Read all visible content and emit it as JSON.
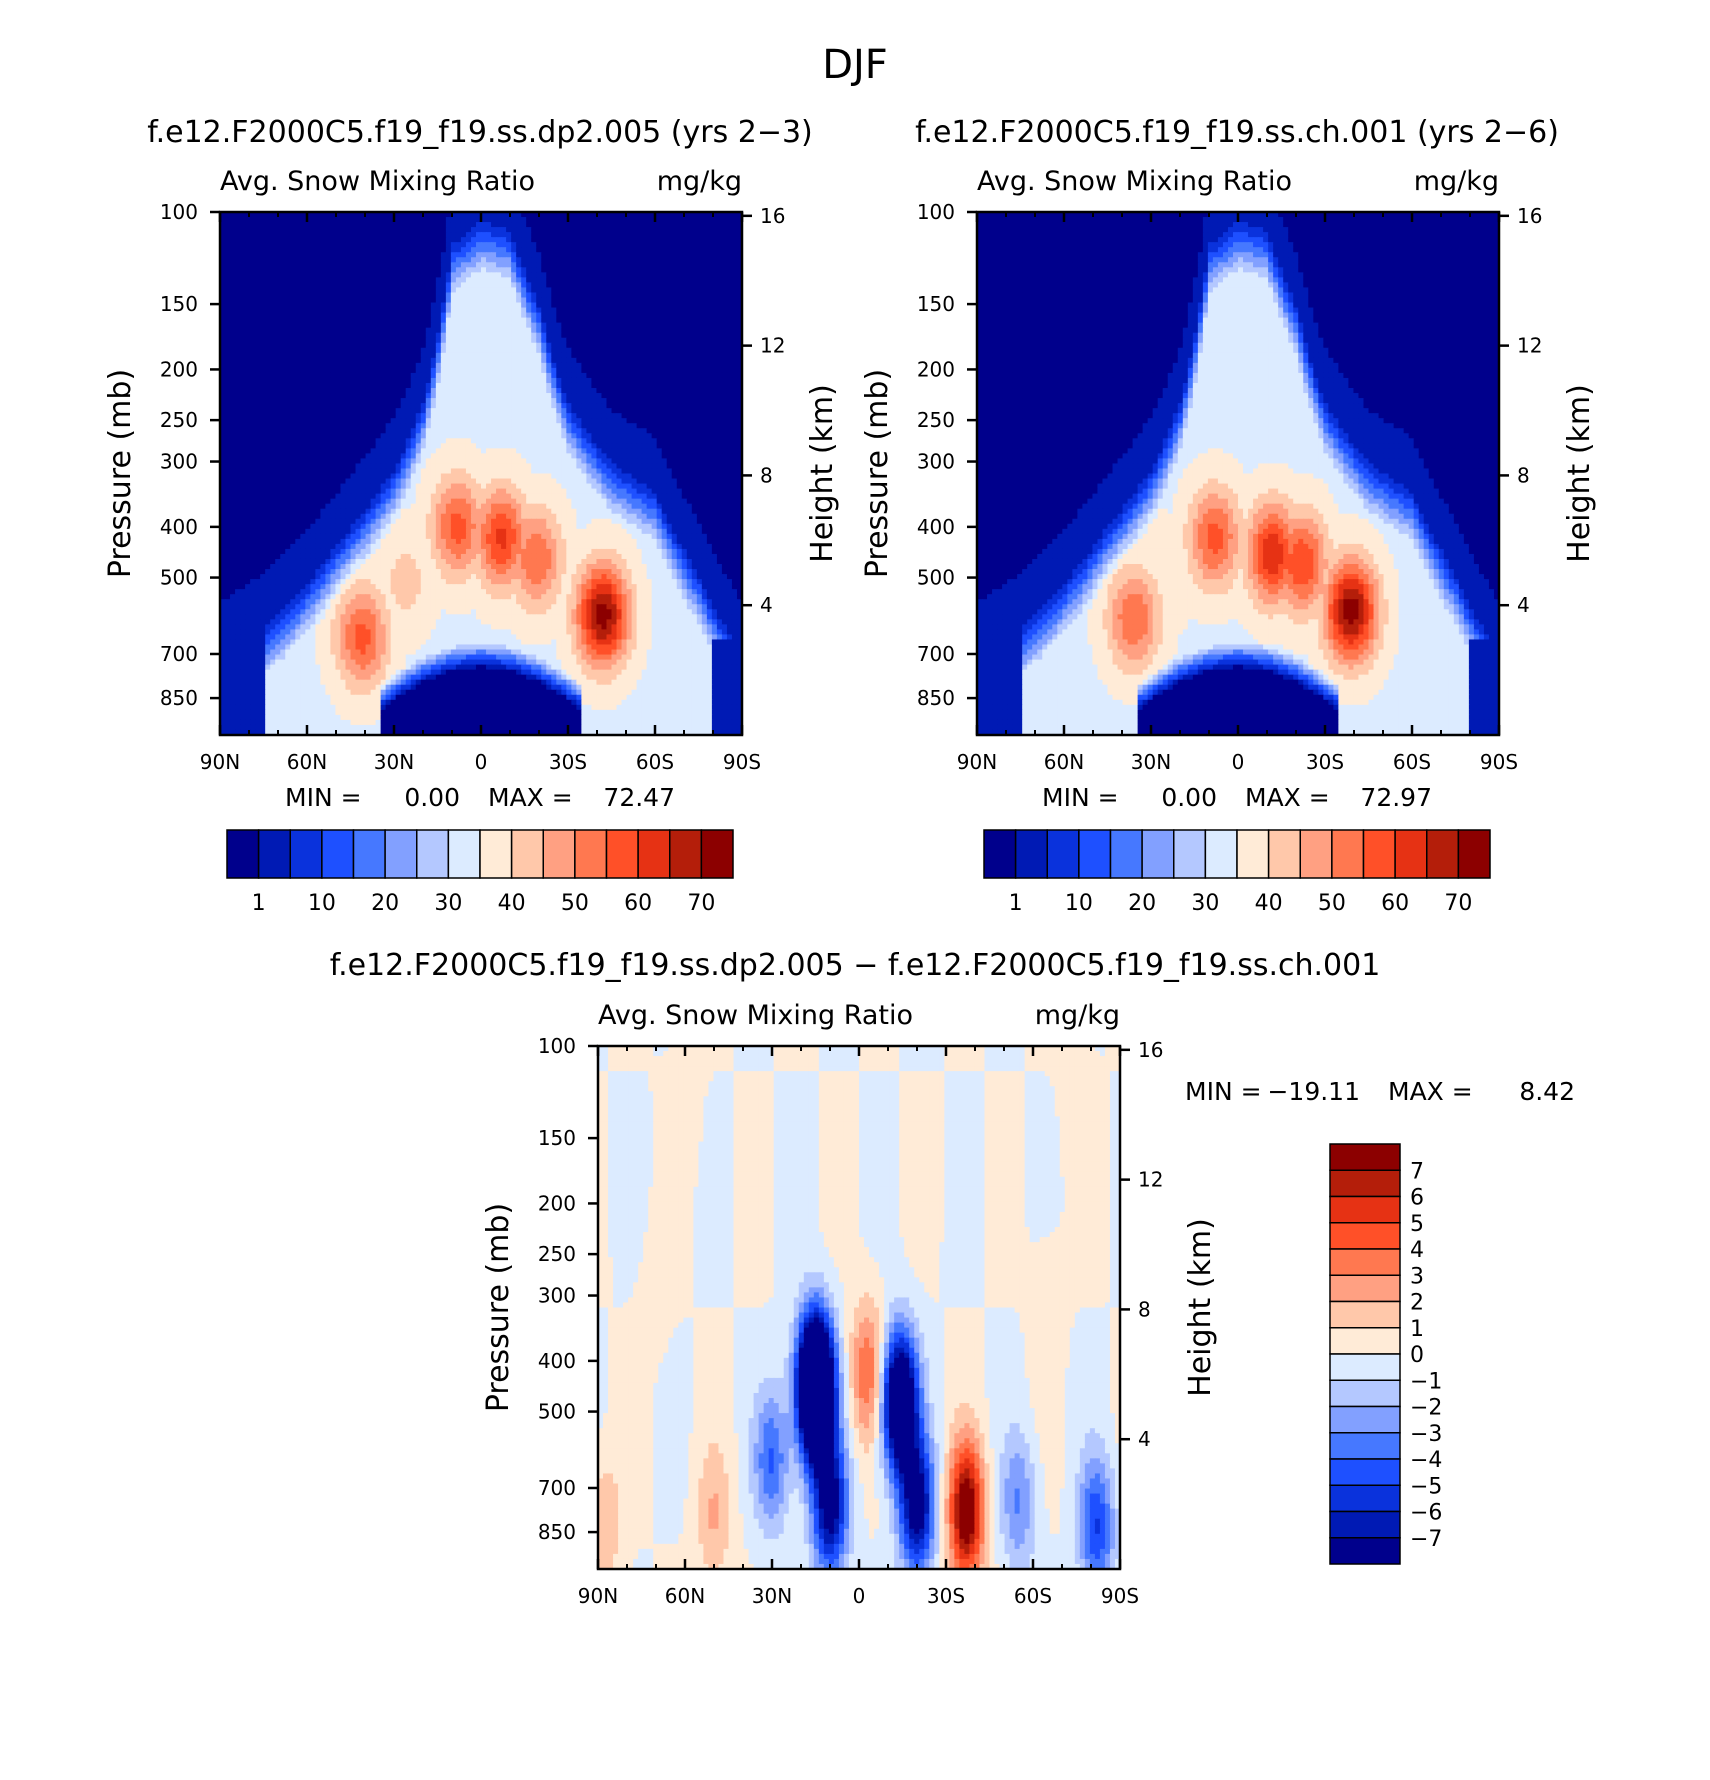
{
  "figure": {
    "title": "DJF"
  },
  "colors": {
    "abs_palette": [
      "#00008c",
      "#001ab4",
      "#0a32dc",
      "#1e50ff",
      "#4678ff",
      "#82a0ff",
      "#b4c8ff",
      "#dcebff",
      "#ffebd7",
      "#ffc8aa",
      "#ffa082",
      "#ff7850",
      "#ff5028",
      "#e63214",
      "#b41e0a",
      "#8c0000"
    ],
    "diff_palette": [
      "#00008c",
      "#001ab4",
      "#0a32dc",
      "#1e50ff",
      "#4678ff",
      "#82a0ff",
      "#b4c8ff",
      "#dcebff",
      "#ffebd7",
      "#ffc8aa",
      "#ffa082",
      "#ff7850",
      "#ff5028",
      "#e63214",
      "#b41e0a",
      "#8c0000"
    ]
  },
  "chart_data": [
    {
      "type": "heatmap",
      "title": "f.e12.F2000C5.f19_f19.ss.dp2.005 (yrs 2-3)",
      "left_label": "Avg. Snow Mixing Ratio",
      "right_label": "mg/kg",
      "ylabel": "Pressure (mb)",
      "ylabel_right": "Height (km)",
      "x_ticks": [
        "90N",
        "60N",
        "30N",
        "0",
        "30S",
        "60S",
        "90S"
      ],
      "x_range": [
        -90,
        90
      ],
      "y_ticks": [
        "100",
        "150",
        "200",
        "250",
        "300",
        "400",
        "500",
        "700",
        "850"
      ],
      "y_range_mb": [
        100,
        1000
      ],
      "y_scale": "log",
      "height_ticks": [
        "4",
        "8",
        "12",
        "16"
      ],
      "min_label": "MIN =",
      "min_value": "0.00",
      "max_label": "MAX =",
      "max_value": "72.47",
      "levels": [
        1,
        5,
        10,
        15,
        20,
        25,
        30,
        35,
        40,
        45,
        50,
        55,
        60,
        65,
        70
      ],
      "colorbar_labels": [
        "1",
        "10",
        "20",
        "30",
        "40",
        "50",
        "60",
        "70"
      ],
      "colorbar_orientation": "horizontal",
      "field": {
        "upper_envelope_deg": [
          -90,
          -75,
          -60,
          -45,
          -30,
          -20,
          -10,
          0,
          10,
          20,
          30,
          45,
          60,
          75,
          90
        ],
        "upper_envelope_mb": [
          700,
          620,
          510,
          400,
          310,
          230,
          115,
          103,
          108,
          150,
          230,
          300,
          340,
          490,
          700
        ],
        "maxima": [
          {
            "lat": -41,
            "p": 650,
            "value": 57
          },
          {
            "lat": -26,
            "p": 510,
            "value": 42
          },
          {
            "lat": -8,
            "p": 400,
            "value": 57
          },
          {
            "lat": 7,
            "p": 420,
            "value": 61
          },
          {
            "lat": 19,
            "p": 460,
            "value": 55
          },
          {
            "lat": 42,
            "p": 590,
            "value": 72.47
          }
        ],
        "dry_dome_center_lat": 0,
        "dry_dome_top_mb": 660
      }
    },
    {
      "type": "heatmap",
      "title": "f.e12.F2000C5.f19_f19.ss.ch.001 (yrs 2-6)",
      "left_label": "Avg. Snow Mixing Ratio",
      "right_label": "mg/kg",
      "ylabel": "Pressure (mb)",
      "ylabel_right": "Height (km)",
      "x_ticks": [
        "90N",
        "60N",
        "30N",
        "0",
        "30S",
        "60S",
        "90S"
      ],
      "x_range": [
        -90,
        90
      ],
      "y_ticks": [
        "100",
        "150",
        "200",
        "250",
        "300",
        "400",
        "500",
        "700",
        "850"
      ],
      "y_range_mb": [
        100,
        1000
      ],
      "y_scale": "log",
      "height_ticks": [
        "4",
        "8",
        "12",
        "16"
      ],
      "min_label": "MIN =",
      "min_value": "0.00",
      "max_label": "MAX =",
      "max_value": "72.97",
      "levels": [
        1,
        5,
        10,
        15,
        20,
        25,
        30,
        35,
        40,
        45,
        50,
        55,
        60,
        65,
        70
      ],
      "colorbar_labels": [
        "1",
        "10",
        "20",
        "30",
        "40",
        "50",
        "60",
        "70"
      ],
      "colorbar_orientation": "horizontal",
      "field": {
        "upper_envelope_deg": [
          -90,
          -75,
          -60,
          -45,
          -30,
          -20,
          -10,
          0,
          10,
          20,
          30,
          45,
          60,
          75,
          90
        ],
        "upper_envelope_mb": [
          700,
          620,
          510,
          400,
          310,
          230,
          115,
          103,
          108,
          150,
          230,
          300,
          340,
          490,
          700
        ],
        "maxima": [
          {
            "lat": -36,
            "p": 600,
            "value": 55
          },
          {
            "lat": -26,
            "p": 500,
            "value": 40
          },
          {
            "lat": -8,
            "p": 420,
            "value": 57
          },
          {
            "lat": 12,
            "p": 450,
            "value": 64
          },
          {
            "lat": 22,
            "p": 470,
            "value": 60
          },
          {
            "lat": 39,
            "p": 580,
            "value": 72.97
          }
        ],
        "dry_dome_center_lat": 0,
        "dry_dome_top_mb": 660
      }
    },
    {
      "type": "heatmap",
      "title": "f.e12.F2000C5.f19_f19.ss.dp2.005 - f.e12.F2000C5.f19_f19.ss.ch.001",
      "left_label": "Avg. Snow Mixing Ratio",
      "right_label": "mg/kg",
      "ylabel": "Pressure (mb)",
      "ylabel_right": "Height (km)",
      "x_ticks": [
        "90N",
        "60N",
        "30N",
        "0",
        "30S",
        "60S",
        "90S"
      ],
      "x_range": [
        -90,
        90
      ],
      "y_ticks": [
        "100",
        "150",
        "200",
        "250",
        "300",
        "400",
        "500",
        "700",
        "850"
      ],
      "y_range_mb": [
        100,
        1000
      ],
      "y_scale": "log",
      "height_ticks": [
        "4",
        "8",
        "12",
        "16"
      ],
      "min_label": "MIN =",
      "min_value": "-19.11",
      "max_label": "MAX =",
      "max_value": "8.42",
      "levels": [
        -7,
        -6,
        -5,
        -4,
        -3,
        -2,
        -1,
        0,
        1,
        2,
        3,
        4,
        5,
        6,
        7
      ],
      "colorbar_labels": [
        "7",
        "6",
        "5",
        "4",
        "3",
        "2",
        "1",
        "0",
        "-1",
        "-2",
        "-3",
        "-4",
        "-5",
        "-6",
        "-7"
      ],
      "colorbar_orientation": "vertical",
      "field": {
        "features": [
          {
            "lat": -15,
            "p": 450,
            "value": -19.11
          },
          {
            "lat": 3,
            "p": 420,
            "value": 4
          },
          {
            "lat": 14,
            "p": 480,
            "value": -12
          },
          {
            "lat": 37,
            "p": 780,
            "value": 8.42
          },
          {
            "lat": -30,
            "p": 620,
            "value": -4
          },
          {
            "lat": -10,
            "p": 760,
            "value": -8
          },
          {
            "lat": 20,
            "p": 760,
            "value": -8
          },
          {
            "lat": -88,
            "p": 820,
            "value": 2
          },
          {
            "lat": -50,
            "p": 800,
            "value": 2
          },
          {
            "lat": 55,
            "p": 750,
            "value": -3
          },
          {
            "lat": 82,
            "p": 830,
            "value": -5
          },
          {
            "lat": -70,
            "p": 300,
            "value": 0.5
          },
          {
            "lat": 65,
            "p": 280,
            "value": 0.5
          },
          {
            "lat": -60,
            "p": 130,
            "value": 0.5
          },
          {
            "lat": 75,
            "p": 130,
            "value": 0.5
          }
        ]
      }
    }
  ]
}
